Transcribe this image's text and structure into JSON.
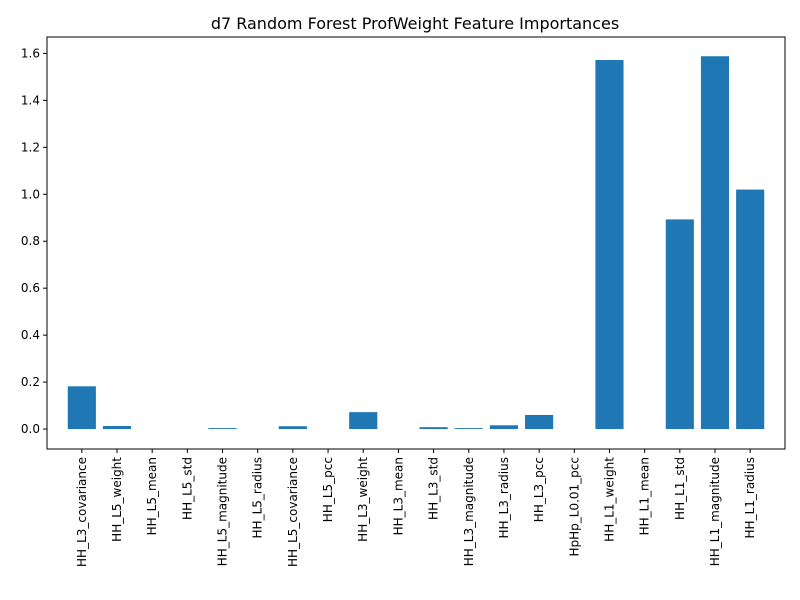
{
  "chart_data": {
    "type": "bar",
    "title": "d7 Random Forest ProfWeight Feature Importances",
    "xlabel": "",
    "ylabel": "",
    "ylim": [
      -0.085,
      1.67
    ],
    "yticks": [
      0.0,
      0.2,
      0.4,
      0.6,
      0.8,
      1.0,
      1.2,
      1.4,
      1.6
    ],
    "ytick_labels": [
      "0.0",
      "0.2",
      "0.4",
      "0.6",
      "0.8",
      "1.0",
      "1.2",
      "1.4",
      "1.6"
    ],
    "grid": false,
    "bar_color": "#1f77b4",
    "categories": [
      "HH_L3_covariance",
      "HH_L5_weight",
      "HH_L5_mean",
      "HH_L5_std",
      "HH_L5_magnitude",
      "HH_L5_radius",
      "HH_L5_covariance",
      "HH_L5_pcc",
      "HH_L3_weight",
      "HH_L3_mean",
      "HH_L3_std",
      "HH_L3_magnitude",
      "HH_L3_radius",
      "HH_L3_pcc",
      "HpHp_L0.01_pcc",
      "HH_L1_weight",
      "HH_L1_mean",
      "HH_L1_std",
      "HH_L1_magnitude",
      "HH_L1_radius"
    ],
    "values": [
      0.182,
      0.013,
      0.0,
      0.0,
      0.004,
      0.0,
      0.012,
      0.0,
      0.072,
      0.0,
      0.008,
      0.004,
      0.016,
      0.06,
      0.0,
      1.572,
      0.0,
      0.893,
      1.588,
      1.02
    ]
  }
}
